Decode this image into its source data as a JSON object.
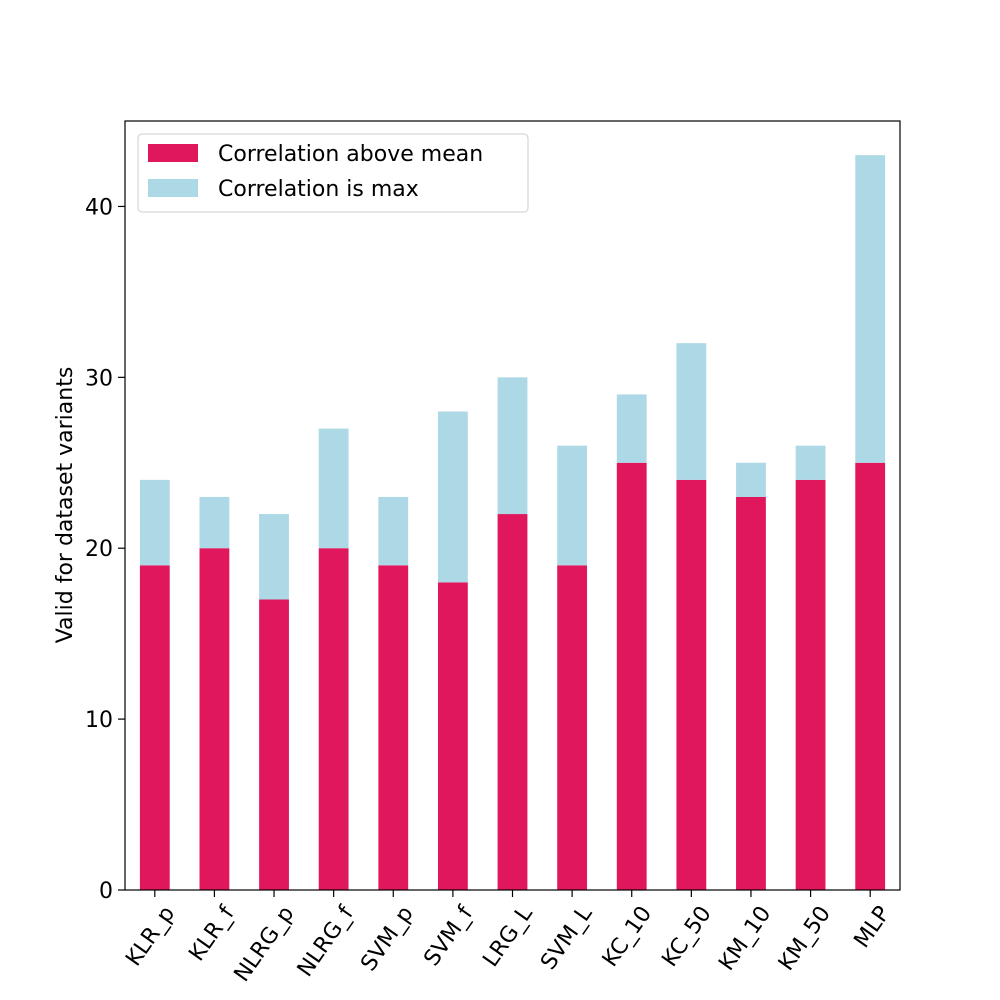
{
  "chart_data": {
    "type": "bar",
    "stacked": true,
    "categories": [
      "KLR_p",
      "KLR_f",
      "NLRG_p",
      "NLRG_f",
      "SVM_p",
      "SVM_f",
      "LRG_L",
      "SVM_L",
      "KC_10",
      "KC_50",
      "KM_10",
      "KM_50",
      "MLP"
    ],
    "series": [
      {
        "name": "Correlation above mean",
        "color": "#e0175c",
        "values": [
          19,
          20,
          17,
          20,
          19,
          18,
          22,
          19,
          25,
          24,
          23,
          24,
          25
        ]
      },
      {
        "name": "Correlation is max",
        "color": "#add8e6",
        "values": [
          5,
          3,
          5,
          7,
          4,
          10,
          8,
          7,
          4,
          8,
          2,
          2,
          18
        ]
      }
    ],
    "totals": [
      24,
      23,
      22,
      27,
      23,
      28,
      30,
      26,
      29,
      32,
      25,
      26,
      43
    ],
    "xlabel": "",
    "ylabel": "Valid for dataset variants",
    "ylim": [
      0,
      45
    ],
    "yticks": [
      0,
      10,
      20,
      30,
      40
    ],
    "grid": false,
    "legend_position": "top-left"
  }
}
